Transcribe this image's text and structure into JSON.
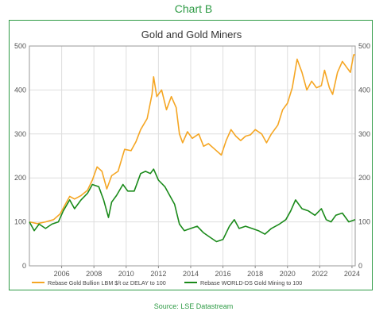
{
  "header": {
    "label": "Chart B"
  },
  "footer": {
    "source": "Source:  LSE Datastream"
  },
  "colors": {
    "gold": "#f5a623",
    "miners": "#1a8a1a",
    "frame": "#2e9b45",
    "grid": "#dedede"
  },
  "chart_data": {
    "type": "line",
    "title": "Gold and Gold Miners",
    "xlabel": "",
    "ylabel": "",
    "xlim": [
      2004.0,
      2024.2
    ],
    "ylim": [
      0,
      500
    ],
    "grid": true,
    "legend_position": "bottom",
    "x_ticks": [
      "2006",
      "2008",
      "2010",
      "2012",
      "2014",
      "2016",
      "2018",
      "2020",
      "2022",
      "2024"
    ],
    "y_ticks": [
      "0",
      "100",
      "200",
      "300",
      "400",
      "500"
    ],
    "series": [
      {
        "name": "Rebase Gold Bullion LBM $/t oz DELAY to 100",
        "color": "#f5a623",
        "points": [
          [
            2004.0,
            100
          ],
          [
            2004.5,
            96
          ],
          [
            2005.0,
            100
          ],
          [
            2005.5,
            105
          ],
          [
            2005.9,
            118
          ],
          [
            2006.3,
            145
          ],
          [
            2006.5,
            158
          ],
          [
            2006.8,
            152
          ],
          [
            2007.2,
            160
          ],
          [
            2007.6,
            172
          ],
          [
            2007.9,
            195
          ],
          [
            2008.2,
            225
          ],
          [
            2008.5,
            215
          ],
          [
            2008.8,
            175
          ],
          [
            2009.1,
            205
          ],
          [
            2009.5,
            215
          ],
          [
            2009.9,
            265
          ],
          [
            2010.3,
            262
          ],
          [
            2010.6,
            282
          ],
          [
            2010.9,
            310
          ],
          [
            2011.3,
            335
          ],
          [
            2011.6,
            390
          ],
          [
            2011.7,
            430
          ],
          [
            2011.9,
            385
          ],
          [
            2012.2,
            400
          ],
          [
            2012.5,
            355
          ],
          [
            2012.8,
            385
          ],
          [
            2013.1,
            360
          ],
          [
            2013.3,
            300
          ],
          [
            2013.5,
            280
          ],
          [
            2013.8,
            305
          ],
          [
            2014.1,
            290
          ],
          [
            2014.5,
            300
          ],
          [
            2014.8,
            272
          ],
          [
            2015.1,
            278
          ],
          [
            2015.5,
            265
          ],
          [
            2015.9,
            252
          ],
          [
            2016.2,
            285
          ],
          [
            2016.5,
            310
          ],
          [
            2016.8,
            295
          ],
          [
            2017.1,
            285
          ],
          [
            2017.4,
            295
          ],
          [
            2017.7,
            298
          ],
          [
            2018.0,
            310
          ],
          [
            2018.4,
            300
          ],
          [
            2018.7,
            280
          ],
          [
            2019.0,
            300
          ],
          [
            2019.4,
            320
          ],
          [
            2019.7,
            355
          ],
          [
            2020.0,
            370
          ],
          [
            2020.3,
            405
          ],
          [
            2020.6,
            470
          ],
          [
            2020.9,
            440
          ],
          [
            2021.2,
            400
          ],
          [
            2021.5,
            420
          ],
          [
            2021.8,
            405
          ],
          [
            2022.1,
            410
          ],
          [
            2022.3,
            445
          ],
          [
            2022.6,
            405
          ],
          [
            2022.8,
            390
          ],
          [
            2023.1,
            440
          ],
          [
            2023.4,
            465
          ],
          [
            2023.7,
            450
          ],
          [
            2023.9,
            440
          ],
          [
            2024.1,
            480
          ],
          [
            2024.2,
            480
          ]
        ]
      },
      {
        "name": "Rebase WORLD-DS Gold Mining to 100",
        "color": "#1a8a1a",
        "points": [
          [
            2004.0,
            100
          ],
          [
            2004.3,
            80
          ],
          [
            2004.6,
            95
          ],
          [
            2005.0,
            85
          ],
          [
            2005.4,
            95
          ],
          [
            2005.8,
            100
          ],
          [
            2006.1,
            125
          ],
          [
            2006.5,
            150
          ],
          [
            2006.8,
            130
          ],
          [
            2007.2,
            150
          ],
          [
            2007.6,
            165
          ],
          [
            2007.9,
            185
          ],
          [
            2008.3,
            180
          ],
          [
            2008.6,
            150
          ],
          [
            2008.9,
            110
          ],
          [
            2009.1,
            145
          ],
          [
            2009.4,
            160
          ],
          [
            2009.8,
            185
          ],
          [
            2010.1,
            170
          ],
          [
            2010.5,
            170
          ],
          [
            2010.9,
            210
          ],
          [
            2011.2,
            215
          ],
          [
            2011.5,
            210
          ],
          [
            2011.7,
            220
          ],
          [
            2012.0,
            195
          ],
          [
            2012.4,
            180
          ],
          [
            2012.7,
            160
          ],
          [
            2013.0,
            140
          ],
          [
            2013.3,
            95
          ],
          [
            2013.6,
            80
          ],
          [
            2014.0,
            85
          ],
          [
            2014.4,
            90
          ],
          [
            2014.8,
            75
          ],
          [
            2015.2,
            65
          ],
          [
            2015.6,
            55
          ],
          [
            2016.0,
            60
          ],
          [
            2016.4,
            90
          ],
          [
            2016.7,
            105
          ],
          [
            2017.0,
            85
          ],
          [
            2017.4,
            90
          ],
          [
            2017.8,
            85
          ],
          [
            2018.2,
            80
          ],
          [
            2018.6,
            72
          ],
          [
            2019.0,
            85
          ],
          [
            2019.5,
            95
          ],
          [
            2019.9,
            105
          ],
          [
            2020.2,
            125
          ],
          [
            2020.5,
            150
          ],
          [
            2020.9,
            130
          ],
          [
            2021.3,
            125
          ],
          [
            2021.7,
            115
          ],
          [
            2022.1,
            130
          ],
          [
            2022.4,
            105
          ],
          [
            2022.7,
            100
          ],
          [
            2023.0,
            115
          ],
          [
            2023.4,
            120
          ],
          [
            2023.8,
            100
          ],
          [
            2024.2,
            105
          ]
        ]
      }
    ]
  }
}
